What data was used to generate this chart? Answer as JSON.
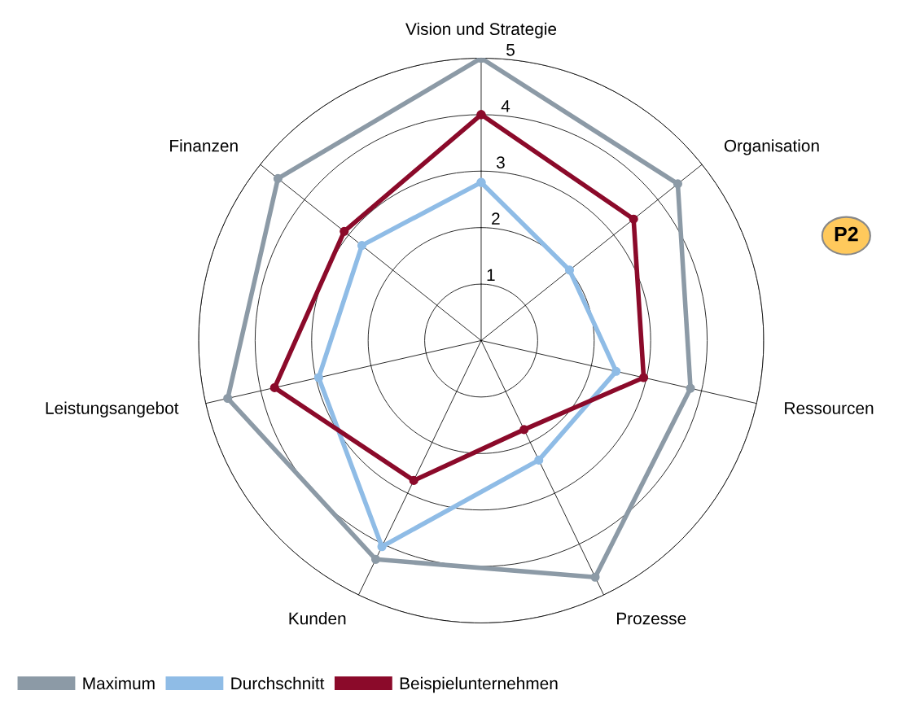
{
  "chart_data": {
    "type": "radar",
    "categories": [
      "Vision und Strategie",
      "Organisation",
      "Ressourcen",
      "Prozesse",
      "Kunden",
      "Leistungsangebot",
      "Finanzen"
    ],
    "series": [
      {
        "name": "Maximum",
        "color": "#8c9aa6",
        "values": [
          5.0,
          4.45,
          3.8,
          4.65,
          4.3,
          4.6,
          4.6
        ]
      },
      {
        "name": "Durchschnitt",
        "color": "#8fbce6",
        "values": [
          2.8,
          2.0,
          2.45,
          2.35,
          4.05,
          2.95,
          2.7
        ]
      },
      {
        "name": "Beispielunternehmen",
        "color": "#8b0a2a",
        "values": [
          4.0,
          3.45,
          2.95,
          1.75,
          2.75,
          3.75,
          3.1
        ]
      }
    ],
    "ylim": [
      0,
      5
    ],
    "yticks": [
      1,
      2,
      3,
      4,
      5
    ],
    "marker": "circle",
    "line_style": "solid",
    "legend": "bottom left",
    "grid": true,
    "annotations": [
      "P2"
    ]
  }
}
